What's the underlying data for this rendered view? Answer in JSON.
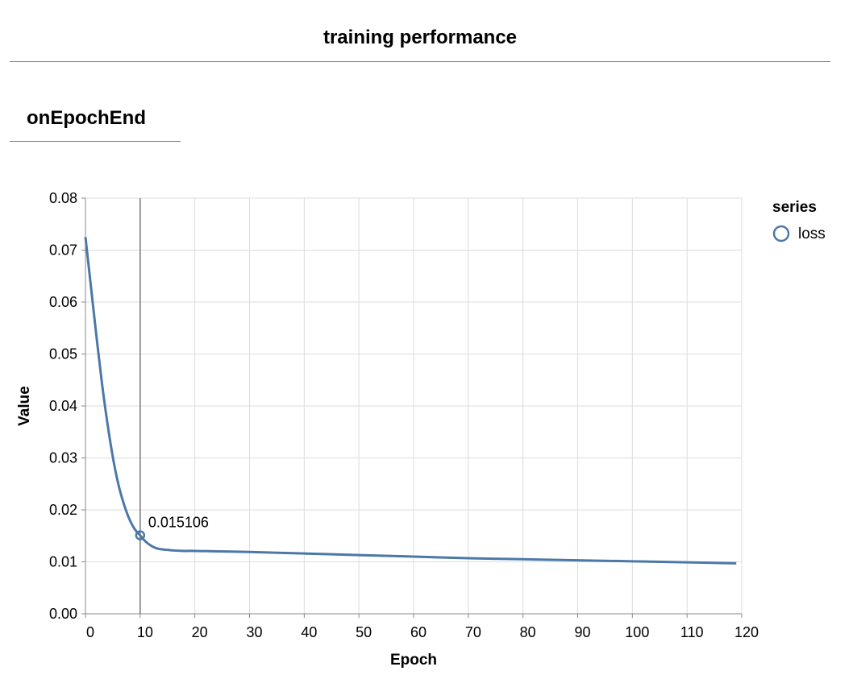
{
  "header": {
    "title": "training performance"
  },
  "tab": {
    "label": "onEpochEnd"
  },
  "chart_data": {
    "type": "line",
    "xlabel": "Epoch",
    "ylabel": "Value",
    "xlim": [
      0,
      120
    ],
    "ylim": [
      0,
      0.08
    ],
    "x_ticks": [
      0,
      10,
      20,
      30,
      40,
      50,
      60,
      70,
      80,
      90,
      100,
      110,
      120
    ],
    "y_ticks": [
      "0.00",
      "0.01",
      "0.02",
      "0.03",
      "0.04",
      "0.05",
      "0.06",
      "0.07",
      "0.08"
    ],
    "grid": true,
    "legend": {
      "title": "series",
      "placement": "right"
    },
    "series": [
      {
        "name": "loss",
        "color": "#4c78a8",
        "x": [
          0,
          1,
          2,
          3,
          4,
          5,
          6,
          7,
          8,
          9,
          10,
          11,
          12,
          13,
          14,
          15,
          16,
          18,
          20,
          25,
          30,
          40,
          50,
          60,
          70,
          80,
          90,
          100,
          110,
          119
        ],
        "values": [
          0.0725,
          0.063,
          0.0535,
          0.0445,
          0.0368,
          0.0302,
          0.025,
          0.0212,
          0.0183,
          0.0163,
          0.0151,
          0.0139,
          0.0131,
          0.0126,
          0.0124,
          0.0123,
          0.0122,
          0.0121,
          0.0121,
          0.012,
          0.0119,
          0.0116,
          0.0113,
          0.011,
          0.0107,
          0.0105,
          0.0103,
          0.0101,
          0.0099,
          0.0097
        ]
      }
    ],
    "hover": {
      "x": 10,
      "y": 0.015106,
      "label": "0.015106"
    }
  }
}
